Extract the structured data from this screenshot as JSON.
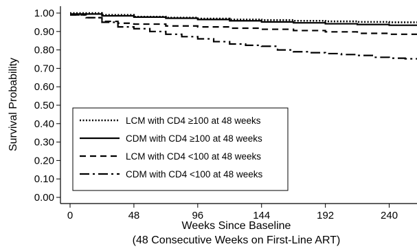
{
  "chart_data": {
    "type": "line",
    "title": "",
    "xlabel": "Weeks Since Baseline",
    "xlabel_sub": "(48 Consecutive Weeks on First-Line ART)",
    "ylabel": "Survival Probability",
    "xlim": [
      0,
      264
    ],
    "ylim": [
      0,
      1
    ],
    "x_ticks": [
      "0",
      "48",
      "96",
      "144",
      "192",
      "240"
    ],
    "y_ticks": [
      "0.00",
      "0.10",
      "0.20",
      "0.30",
      "0.40",
      "0.50",
      "0.60",
      "0.70",
      "0.80",
      "0.90",
      "1.00"
    ],
    "grid": false,
    "legend_position": "bottom-left",
    "series": [
      {
        "name": "LCM with CD4 ≥100 at 48 weeks",
        "style": "dotted",
        "x": [
          0,
          24,
          48,
          72,
          96,
          120,
          144,
          168,
          192,
          216,
          240,
          264
        ],
        "y": [
          1.0,
          0.99,
          0.98,
          0.975,
          0.97,
          0.965,
          0.962,
          0.958,
          0.955,
          0.952,
          0.95,
          0.948
        ]
      },
      {
        "name": "CDM with CD4 ≥100 at 48 weeks",
        "style": "solid",
        "x": [
          0,
          24,
          48,
          72,
          96,
          120,
          144,
          168,
          192,
          216,
          240,
          264
        ],
        "y": [
          0.995,
          0.985,
          0.978,
          0.972,
          0.965,
          0.958,
          0.952,
          0.947,
          0.942,
          0.938,
          0.934,
          0.93
        ]
      },
      {
        "name": "LCM with CD4 <100 at 48 weeks",
        "style": "dashed",
        "x": [
          0,
          12,
          24,
          36,
          48,
          72,
          96,
          120,
          144,
          168,
          192,
          216,
          240,
          264
        ],
        "y": [
          0.99,
          0.975,
          0.955,
          0.945,
          0.94,
          0.93,
          0.925,
          0.918,
          0.912,
          0.905,
          0.898,
          0.89,
          0.885,
          0.882
        ]
      },
      {
        "name": "CDM with CD4 <100 at 48 weeks",
        "style": "dash-dot",
        "x": [
          0,
          12,
          24,
          36,
          48,
          60,
          72,
          84,
          96,
          108,
          120,
          132,
          144,
          156,
          168,
          180,
          192,
          204,
          216,
          228,
          240,
          252,
          264
        ],
        "y": [
          0.99,
          0.975,
          0.95,
          0.925,
          0.915,
          0.9,
          0.885,
          0.872,
          0.86,
          0.845,
          0.832,
          0.825,
          0.82,
          0.8,
          0.79,
          0.785,
          0.78,
          0.775,
          0.77,
          0.76,
          0.755,
          0.752,
          0.75
        ]
      }
    ]
  }
}
